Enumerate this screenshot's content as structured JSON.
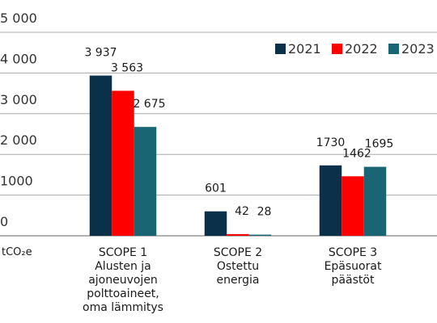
{
  "chart_data": {
    "type": "bar",
    "unit_label": "tCO₂e",
    "categories": [
      "SCOPE 1\nAlusten ja\najoneuvojen\npolttoaineet,\noma lämmitys",
      "SCOPE 2\nOstettu\nenergia",
      "SCOPE 3\nEpäsuorat\npäästöt"
    ],
    "series": [
      {
        "name": "2021",
        "color": "#0b3049",
        "values": [
          3937,
          601,
          1730
        ],
        "value_labels": [
          "3 937",
          "601",
          "1730"
        ]
      },
      {
        "name": "2022",
        "color": "#ff0000",
        "values": [
          3563,
          42,
          1462
        ],
        "value_labels": [
          "3 563",
          "42",
          "1462"
        ]
      },
      {
        "name": "2023",
        "color": "#1a6573",
        "values": [
          2675,
          28,
          1695
        ],
        "value_labels": [
          "2 675",
          "28",
          "1695"
        ]
      }
    ],
    "ylim": [
      0,
      5000
    ],
    "yticks": [
      0,
      1000,
      {
        "value": 2000,
        "label": "2 000"
      },
      {
        "value": 3000,
        "label": "3 000"
      },
      {
        "value": 4000,
        "label": "4 000"
      },
      {
        "value": 5000,
        "label": "5 000"
      }
    ],
    "grid": true,
    "legend": "top-right"
  }
}
